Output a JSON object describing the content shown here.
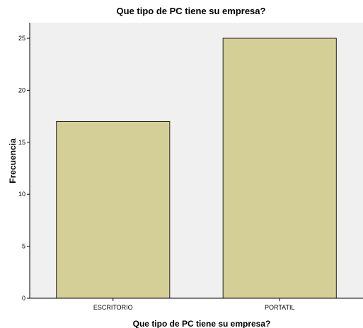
{
  "chart_data": {
    "type": "bar",
    "title": "Que tipo de PC tiene su empresa?",
    "xlabel": "Que tipo de PC tiene su empresa?",
    "ylabel": "Frecuencia",
    "categories": [
      "ESCRITORIO",
      "PORTATIL"
    ],
    "values": [
      17,
      25
    ],
    "ylim": [
      0,
      26.5
    ],
    "yticks": [
      0,
      5,
      10,
      15,
      20,
      25
    ],
    "grid": false,
    "legend": "none",
    "colors": {
      "bar_fill": "#d4cf97",
      "bar_stroke": "#222222",
      "plot_background": "#f0f0f0"
    }
  }
}
